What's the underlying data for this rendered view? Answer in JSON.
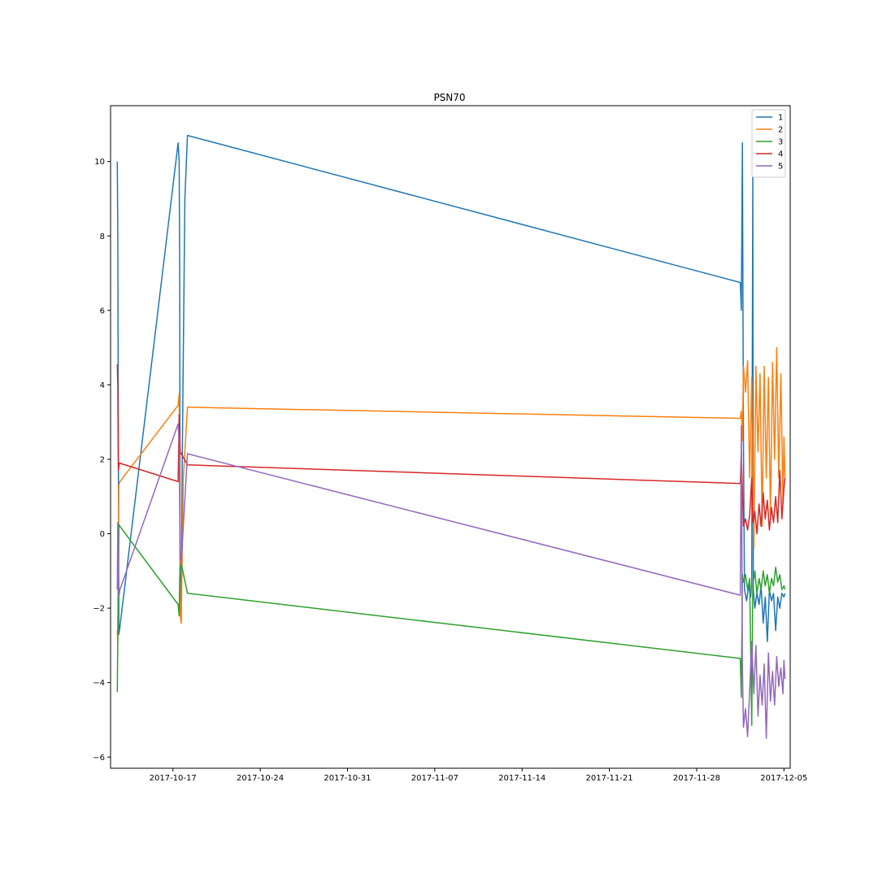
{
  "chart_data": {
    "type": "line",
    "title": "PSN70",
    "xlabel": "",
    "ylabel": "",
    "grid": false,
    "legend_position": "top-right",
    "x_axis": {
      "kind": "date",
      "range": [
        "2017-10-12T00:00",
        "2017-12-05T12:00"
      ],
      "ticks": [
        "2017-10-17",
        "2017-10-24",
        "2017-10-31",
        "2017-11-07",
        "2017-11-14",
        "2017-11-21",
        "2017-11-28",
        "2017-12-05"
      ]
    },
    "y_axis": {
      "range": [
        -6.3,
        11.5
      ],
      "ticks": [
        -6,
        -4,
        -2,
        0,
        2,
        4,
        6,
        8,
        10
      ],
      "tick_labels": [
        "−6",
        "−4",
        "−2",
        "0",
        "2",
        "4",
        "6",
        "8",
        "10"
      ]
    },
    "series": [
      {
        "name": "1",
        "color": "#1f77b4",
        "points": [
          [
            "2017-10-12T13:00",
            10.0
          ],
          [
            "2017-10-12T14:00",
            8.0
          ],
          [
            "2017-10-12T16:00",
            -2.7
          ],
          [
            "2017-10-12T18:00",
            -2.5
          ],
          [
            "2017-10-17T10:00",
            10.5
          ],
          [
            "2017-10-17T12:00",
            10.0
          ],
          [
            "2017-10-17T13:00",
            7.2
          ],
          [
            "2017-10-17T14:00",
            -1.0
          ],
          [
            "2017-10-17T16:00",
            -2.4
          ],
          [
            "2017-10-17T18:00",
            2.0
          ],
          [
            "2017-10-17T23:00",
            9.0
          ],
          [
            "2017-10-18T04:00",
            10.7
          ],
          [
            "2017-12-01T12:00",
            6.75
          ],
          [
            "2017-12-01T14:00",
            6.0
          ],
          [
            "2017-12-01T16:00",
            10.5
          ],
          [
            "2017-12-01T18:00",
            2.5
          ],
          [
            "2017-12-01T20:00",
            -1.5
          ],
          [
            "2017-12-02T00:00",
            -1.8
          ],
          [
            "2017-12-02T04:00",
            -1.4
          ],
          [
            "2017-12-02T08:00",
            -1.7
          ],
          [
            "2017-12-02T10:00",
            -1.3
          ],
          [
            "2017-12-02T12:00",
            9.6
          ],
          [
            "2017-12-02T13:00",
            -1.5
          ],
          [
            "2017-12-02T16:00",
            -2.0
          ],
          [
            "2017-12-02T20:00",
            -1.6
          ],
          [
            "2017-12-03T00:00",
            -1.9
          ],
          [
            "2017-12-03T04:00",
            -1.4
          ],
          [
            "2017-12-03T08:00",
            -2.4
          ],
          [
            "2017-12-03T12:00",
            -1.7
          ],
          [
            "2017-12-03T16:00",
            -2.9
          ],
          [
            "2017-12-03T20:00",
            -1.5
          ],
          [
            "2017-12-04T00:00",
            -1.8
          ],
          [
            "2017-12-04T04:00",
            -1.6
          ],
          [
            "2017-12-04T08:00",
            -2.6
          ],
          [
            "2017-12-04T12:00",
            -1.7
          ],
          [
            "2017-12-04T16:00",
            -2.0
          ],
          [
            "2017-12-04T20:00",
            -1.6
          ],
          [
            "2017-12-05T00:00",
            -1.7
          ],
          [
            "2017-12-05T02:00",
            -1.6
          ]
        ]
      },
      {
        "name": "2",
        "color": "#ff7f0e",
        "points": [
          [
            "2017-10-12T13:00",
            -2.6
          ],
          [
            "2017-10-12T14:00",
            -2.9
          ],
          [
            "2017-10-12T16:00",
            1.3
          ],
          [
            "2017-10-12T18:00",
            1.4
          ],
          [
            "2017-10-17T10:00",
            3.45
          ],
          [
            "2017-10-17T12:00",
            3.75
          ],
          [
            "2017-10-17T13:00",
            1.5
          ],
          [
            "2017-10-17T14:00",
            -2.2
          ],
          [
            "2017-10-17T16:00",
            -2.4
          ],
          [
            "2017-10-17T20:00",
            1.5
          ],
          [
            "2017-10-18T04:00",
            3.4
          ],
          [
            "2017-12-01T12:00",
            3.1
          ],
          [
            "2017-12-01T14:00",
            3.3
          ],
          [
            "2017-12-01T16:00",
            2.5
          ],
          [
            "2017-12-01T18:00",
            4.5
          ],
          [
            "2017-12-01T22:00",
            3.8
          ],
          [
            "2017-12-02T02:00",
            4.65
          ],
          [
            "2017-12-02T06:00",
            1.5
          ],
          [
            "2017-12-02T10:00",
            4.2
          ],
          [
            "2017-12-02T12:00",
            1.0
          ],
          [
            "2017-12-02T14:00",
            -0.4
          ],
          [
            "2017-12-02T18:00",
            4.5
          ],
          [
            "2017-12-02T22:00",
            2.2
          ],
          [
            "2017-12-03T02:00",
            4.3
          ],
          [
            "2017-12-03T06:00",
            0.2
          ],
          [
            "2017-12-03T10:00",
            4.5
          ],
          [
            "2017-12-03T14:00",
            1.5
          ],
          [
            "2017-12-03T18:00",
            4.2
          ],
          [
            "2017-12-03T22:00",
            0.5
          ],
          [
            "2017-12-04T02:00",
            4.6
          ],
          [
            "2017-12-04T06:00",
            2.0
          ],
          [
            "2017-12-04T10:00",
            5.0
          ],
          [
            "2017-12-04T14:00",
            1.5
          ],
          [
            "2017-12-04T18:00",
            4.3
          ],
          [
            "2017-12-04T22:00",
            0.8
          ],
          [
            "2017-12-05T00:00",
            2.6
          ],
          [
            "2017-12-05T02:00",
            1.5
          ]
        ]
      },
      {
        "name": "3",
        "color": "#2ca02c",
        "points": [
          [
            "2017-10-12T13:00",
            -4.25
          ],
          [
            "2017-10-12T14:00",
            -2.8
          ],
          [
            "2017-10-12T16:00",
            0.25
          ],
          [
            "2017-10-12T18:00",
            0.2
          ],
          [
            "2017-10-17T10:00",
            -1.9
          ],
          [
            "2017-10-17T12:00",
            -2.2
          ],
          [
            "2017-10-17T13:00",
            -1.2
          ],
          [
            "2017-10-17T14:00",
            -0.9
          ],
          [
            "2017-10-17T16:00",
            -0.8
          ],
          [
            "2017-10-18T04:00",
            -1.6
          ],
          [
            "2017-12-01T12:00",
            -3.35
          ],
          [
            "2017-12-01T14:00",
            -4.4
          ],
          [
            "2017-12-01T16:00",
            -1.1
          ],
          [
            "2017-12-01T18:00",
            -1.3
          ],
          [
            "2017-12-01T22:00",
            -1.1
          ],
          [
            "2017-12-02T02:00",
            -1.5
          ],
          [
            "2017-12-02T06:00",
            -1.2
          ],
          [
            "2017-12-02T10:00",
            -5.15
          ],
          [
            "2017-12-02T12:00",
            -1.4
          ],
          [
            "2017-12-02T16:00",
            -1.0
          ],
          [
            "2017-12-02T20:00",
            -1.6
          ],
          [
            "2017-12-03T00:00",
            -1.2
          ],
          [
            "2017-12-03T04:00",
            -1.5
          ],
          [
            "2017-12-03T08:00",
            -1.0
          ],
          [
            "2017-12-03T12:00",
            -1.4
          ],
          [
            "2017-12-03T16:00",
            -1.1
          ],
          [
            "2017-12-03T20:00",
            -1.6
          ],
          [
            "2017-12-04T00:00",
            -1.2
          ],
          [
            "2017-12-04T04:00",
            -1.4
          ],
          [
            "2017-12-04T08:00",
            -0.9
          ],
          [
            "2017-12-04T12:00",
            -1.3
          ],
          [
            "2017-12-04T16:00",
            -1.1
          ],
          [
            "2017-12-04T20:00",
            -1.5
          ],
          [
            "2017-12-05T00:00",
            -1.4
          ],
          [
            "2017-12-05T02:00",
            -1.5
          ]
        ]
      },
      {
        "name": "4",
        "color": "#d62728",
        "points": [
          [
            "2017-10-12T13:00",
            4.55
          ],
          [
            "2017-10-12T14:00",
            4.0
          ],
          [
            "2017-10-12T15:00",
            1.7
          ],
          [
            "2017-10-12T17:00",
            1.9
          ],
          [
            "2017-10-17T10:00",
            1.4
          ],
          [
            "2017-10-17T12:00",
            3.2
          ],
          [
            "2017-10-17T14:00",
            2.2
          ],
          [
            "2017-10-18T04:00",
            1.85
          ],
          [
            "2017-12-01T12:00",
            1.35
          ],
          [
            "2017-12-01T14:00",
            2.2
          ],
          [
            "2017-12-01T16:00",
            1.2
          ],
          [
            "2017-12-01T18:00",
            0.2
          ],
          [
            "2017-12-01T22:00",
            0.4
          ],
          [
            "2017-12-02T02:00",
            0.1
          ],
          [
            "2017-12-02T06:00",
            0.5
          ],
          [
            "2017-12-02T10:00",
            1.5
          ],
          [
            "2017-12-02T12:00",
            0.3
          ],
          [
            "2017-12-02T16:00",
            0.6
          ],
          [
            "2017-12-02T20:00",
            0.0
          ],
          [
            "2017-12-03T00:00",
            0.8
          ],
          [
            "2017-12-03T04:00",
            0.2
          ],
          [
            "2017-12-03T08:00",
            1.1
          ],
          [
            "2017-12-03T12:00",
            0.4
          ],
          [
            "2017-12-03T16:00",
            0.9
          ],
          [
            "2017-12-03T20:00",
            0.1
          ],
          [
            "2017-12-04T00:00",
            0.7
          ],
          [
            "2017-12-04T04:00",
            0.3
          ],
          [
            "2017-12-04T08:00",
            1.0
          ],
          [
            "2017-12-04T12:00",
            0.3
          ],
          [
            "2017-12-04T16:00",
            1.7
          ],
          [
            "2017-12-04T20:00",
            0.4
          ],
          [
            "2017-12-05T00:00",
            1.2
          ],
          [
            "2017-12-05T02:00",
            1.5
          ]
        ]
      },
      {
        "name": "5",
        "color": "#9467bd",
        "points": [
          [
            "2017-10-12T13:00",
            -1.5
          ],
          [
            "2017-10-12T14:00",
            0.3
          ],
          [
            "2017-10-12T16:00",
            -1.7
          ],
          [
            "2017-10-12T18:00",
            -1.5
          ],
          [
            "2017-10-17T10:00",
            2.95
          ],
          [
            "2017-10-17T12:00",
            2.5
          ],
          [
            "2017-10-17T14:00",
            -0.6
          ],
          [
            "2017-10-17T16:00",
            -0.8
          ],
          [
            "2017-10-18T04:00",
            2.15
          ],
          [
            "2017-12-01T12:00",
            -1.65
          ],
          [
            "2017-12-01T14:00",
            2.9
          ],
          [
            "2017-12-01T16:00",
            -3.5
          ],
          [
            "2017-12-01T18:00",
            -5.2
          ],
          [
            "2017-12-01T22:00",
            -4.7
          ],
          [
            "2017-12-02T02:00",
            -5.45
          ],
          [
            "2017-12-02T06:00",
            -4.2
          ],
          [
            "2017-12-02T10:00",
            -2.9
          ],
          [
            "2017-12-02T14:00",
            -4.3
          ],
          [
            "2017-12-02T18:00",
            -3.0
          ],
          [
            "2017-12-02T22:00",
            -4.9
          ],
          [
            "2017-12-03T02:00",
            -3.8
          ],
          [
            "2017-12-03T06:00",
            -4.6
          ],
          [
            "2017-12-03T10:00",
            -3.5
          ],
          [
            "2017-12-03T14:00",
            -5.5
          ],
          [
            "2017-12-03T18:00",
            -3.2
          ],
          [
            "2017-12-03T22:00",
            -4.5
          ],
          [
            "2017-12-04T02:00",
            -3.7
          ],
          [
            "2017-12-04T06:00",
            -4.6
          ],
          [
            "2017-12-04T10:00",
            -3.3
          ],
          [
            "2017-12-04T14:00",
            -4.1
          ],
          [
            "2017-12-04T18:00",
            -3.6
          ],
          [
            "2017-12-04T22:00",
            -4.3
          ],
          [
            "2017-12-05T00:00",
            -3.4
          ],
          [
            "2017-12-05T02:00",
            -3.9
          ]
        ]
      }
    ]
  }
}
